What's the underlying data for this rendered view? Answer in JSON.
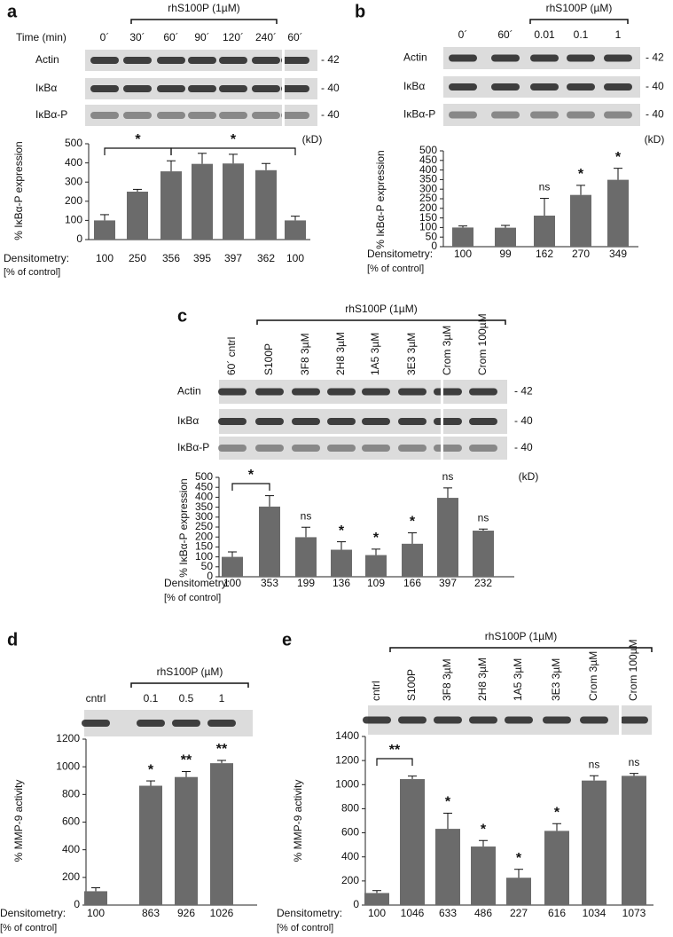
{
  "chart_data": [
    {
      "panel": "a",
      "type": "bar",
      "ylabel": "% IκBα-P expression",
      "lane_title": "Time (min)",
      "treatment": "rhS100P (1µM)",
      "categories": [
        "0´",
        "30´",
        "60´",
        "90´",
        "120´",
        "240´",
        "60´"
      ],
      "values": [
        100,
        250,
        356,
        395,
        397,
        362,
        100
      ],
      "errors": [
        30,
        12,
        55,
        55,
        48,
        35,
        22
      ],
      "ylim": [
        0,
        500
      ],
      "yticks": [
        0,
        100,
        200,
        300,
        400,
        500
      ],
      "color": "#6b6b6b",
      "blot_rows": [
        {
          "label": "Actin",
          "kd": "- 42"
        },
        {
          "label": "IκBα",
          "kd": "- 40"
        },
        {
          "label": "IκBα-P",
          "kd": "- 40"
        }
      ],
      "kd_unit": "(kD)",
      "densitometry_label": "Densitometry:",
      "densitometry_unit": "[% of control]",
      "significance": [
        null,
        null,
        null,
        null,
        null,
        null,
        null
      ],
      "comparisons": [
        "*",
        "*"
      ]
    },
    {
      "panel": "b",
      "type": "bar",
      "ylabel": "% IκBα-P expression",
      "treatment": "rhS100P  (µM)",
      "categories": [
        "0´",
        "60´",
        "0.01",
        "0.1",
        "1"
      ],
      "values": [
        100,
        99,
        162,
        270,
        349
      ],
      "errors": [
        8,
        12,
        90,
        50,
        60
      ],
      "ylim": [
        0,
        500
      ],
      "yticks": [
        0,
        50,
        100,
        150,
        200,
        250,
        300,
        350,
        400,
        450,
        500
      ],
      "color": "#6b6b6b",
      "blot_rows": [
        {
          "label": "Actin",
          "kd": "- 42"
        },
        {
          "label": "IκBα",
          "kd": "- 40"
        },
        {
          "label": "IκBα-P",
          "kd": "- 40"
        }
      ],
      "kd_unit": "(kD)",
      "densitometry_label": "Densitometry:",
      "densitometry_unit": "[% of control]",
      "significance": [
        null,
        null,
        "ns",
        "*",
        "*"
      ],
      "comparisons": []
    },
    {
      "panel": "c",
      "type": "bar",
      "ylabel": "% IκBα-P expression",
      "treatment": "rhS100P (1µM)",
      "categories": [
        "60´ cntrl",
        "S100P",
        "3F8 3µM",
        "2H8 3µM",
        "1A5 3µM",
        "3E3 3µM",
        "Crom 3µM",
        "Crom 100µM"
      ],
      "values": [
        100,
        353,
        199,
        136,
        109,
        166,
        397,
        232
      ],
      "errors": [
        25,
        55,
        50,
        40,
        30,
        55,
        50,
        8
      ],
      "ylim": [
        0,
        500
      ],
      "yticks": [
        0,
        50,
        100,
        150,
        200,
        250,
        300,
        350,
        400,
        450,
        500
      ],
      "color": "#6b6b6b",
      "blot_rows": [
        {
          "label": "Actin",
          "kd": "- 42"
        },
        {
          "label": "IκBα",
          "kd": "- 40"
        },
        {
          "label": "IκBα-P",
          "kd": "- 40"
        }
      ],
      "kd_unit": "(kD)",
      "densitometry_label": "Densitometry:",
      "densitometry_unit": "[% of control]",
      "significance": [
        null,
        null,
        "ns",
        "*",
        "*",
        "*",
        "ns",
        "ns"
      ],
      "comparisons": [
        "*"
      ]
    },
    {
      "panel": "d",
      "type": "bar",
      "ylabel": "% MMP-9 activity",
      "treatment": "rhS100P (µM)",
      "categories": [
        "cntrl",
        "0.1",
        "0.5",
        "1"
      ],
      "values": [
        100,
        863,
        926,
        1026
      ],
      "errors": [
        25,
        35,
        40,
        20
      ],
      "ylim": [
        0,
        1200
      ],
      "yticks": [
        0,
        200,
        400,
        600,
        800,
        1000,
        1200
      ],
      "color": "#6b6b6b",
      "densitometry_label": "Densitometry:",
      "densitometry_unit": "[% of control]",
      "significance": [
        null,
        "*",
        "**",
        "**"
      ],
      "comparisons": []
    },
    {
      "panel": "e",
      "type": "bar",
      "ylabel": "% MMP-9 activity",
      "treatment": "rhS100P (1µM)",
      "categories": [
        "cntrl",
        "S100P",
        "3F8 3µM",
        "2H8 3µM",
        "1A5 3µM",
        "3E3 3µM",
        "Crom 3µM",
        "Crom 100µM"
      ],
      "values": [
        100,
        1046,
        633,
        486,
        227,
        616,
        1034,
        1073
      ],
      "errors": [
        20,
        25,
        130,
        50,
        70,
        60,
        40,
        20
      ],
      "ylim": [
        0,
        1400
      ],
      "yticks": [
        0,
        200,
        400,
        600,
        800,
        1000,
        1200,
        1400
      ],
      "color": "#6b6b6b",
      "densitometry_label": "Densitometry:",
      "densitometry_unit": "[% of control]",
      "significance": [
        null,
        null,
        "*",
        "*",
        "*",
        "*",
        "ns",
        "ns"
      ],
      "comparisons": [
        "**"
      ]
    }
  ]
}
